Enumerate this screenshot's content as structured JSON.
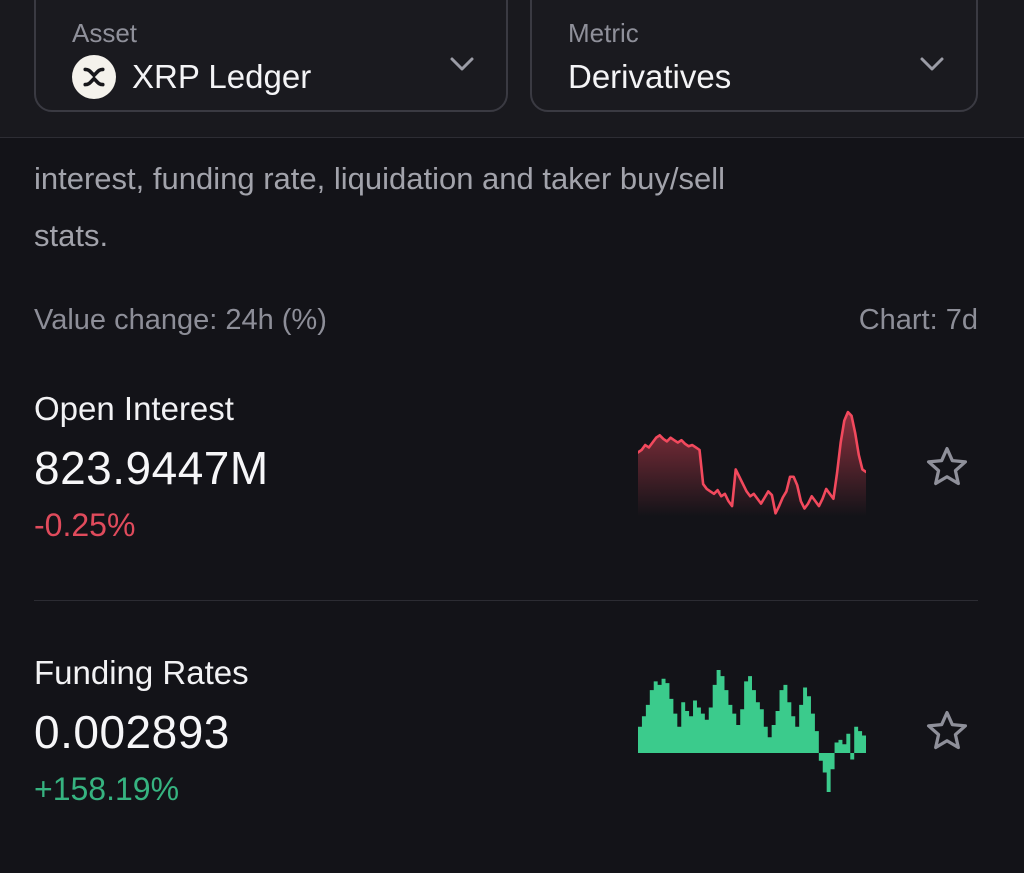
{
  "header": {
    "asset_selector": {
      "label": "Asset",
      "value": "XRP Ledger",
      "icon": "xrp-logo"
    },
    "metric_selector": {
      "label": "Metric",
      "value": "Derivatives"
    }
  },
  "description": {
    "line1": "interest, funding rate, liquidation and taker buy/sell",
    "line2": "stats."
  },
  "list_header": {
    "left": "Value change: 24h (%)",
    "right": "Chart: 7d"
  },
  "metrics": [
    {
      "name": "Open Interest",
      "value": "823.9447M",
      "change": "-0.25%",
      "direction": "down"
    },
    {
      "name": "Funding Rates",
      "value": "0.002893",
      "change": "+158.19%",
      "direction": "up"
    }
  ],
  "colors": {
    "negative_text": "#e04b5c",
    "positive_text": "#36b380",
    "red_line": "#f2495d",
    "green_fill": "#3bcb8c",
    "star": "#8f909a"
  },
  "chart_data": [
    {
      "type": "area",
      "name": "open-interest-7d-sparkline",
      "color": "#f2495d",
      "points": [
        62,
        64,
        68,
        66,
        70,
        74,
        76,
        73,
        71,
        74,
        72,
        70,
        72,
        69,
        67,
        68,
        66,
        64,
        36,
        32,
        30,
        28,
        31,
        26,
        28,
        22,
        18,
        48,
        42,
        36,
        30,
        26,
        28,
        24,
        20,
        25,
        30,
        27,
        12,
        18,
        25,
        30,
        42,
        42,
        35,
        22,
        16,
        20,
        26,
        22,
        18,
        24,
        32,
        28,
        24,
        45,
        70,
        88,
        95,
        92,
        78,
        60,
        48,
        46
      ]
    },
    {
      "type": "step-bar",
      "name": "funding-rates-7d-sparkline",
      "color": "#3bcb8c",
      "baseline_frac": 0.68,
      "values": [
        0.3,
        0.42,
        0.55,
        0.72,
        0.82,
        0.78,
        0.85,
        0.8,
        0.62,
        0.45,
        0.3,
        0.58,
        0.48,
        0.42,
        0.6,
        0.52,
        0.45,
        0.38,
        0.52,
        0.78,
        0.95,
        0.88,
        0.72,
        0.55,
        0.45,
        0.32,
        0.5,
        0.82,
        0.88,
        0.72,
        0.58,
        0.5,
        0.3,
        0.18,
        0.32,
        0.48,
        0.72,
        0.78,
        0.58,
        0.42,
        0.3,
        0.55,
        0.75,
        0.65,
        0.45,
        0.25,
        -0.12,
        -0.3,
        -0.6,
        -0.25,
        0.12,
        0.15,
        0.1,
        0.22,
        -0.1,
        0.3,
        0.25,
        0.2
      ]
    }
  ]
}
